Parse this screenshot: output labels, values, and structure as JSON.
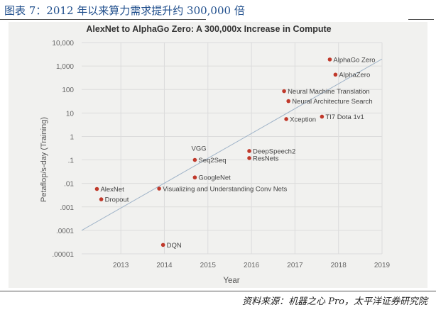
{
  "caption": "图表 7：2012 年以来算力需求提升约 300,000 倍",
  "source": "资料来源：机器之心 Pro，太平洋证券研究院",
  "chart_data": {
    "type": "scatter",
    "title": "AlexNet to AlphaGo Zero: A 300,000x Increase in Compute",
    "xlabel": "Year",
    "ylabel": "Petaflop/s-day (Training)",
    "y_scale": "log",
    "xlim": [
      2012.1,
      2019.0
    ],
    "ylim": [
      1e-05,
      10000
    ],
    "x_ticks": [
      2013,
      2014,
      2015,
      2016,
      2017,
      2018,
      2019
    ],
    "x_tick_labels": [
      "2013",
      "2014",
      "2015",
      "2016",
      "2017",
      "2018",
      "2019"
    ],
    "y_ticks": [
      1e-05,
      0.0001,
      0.001,
      0.01,
      0.1,
      1,
      10,
      100,
      1000,
      10000
    ],
    "y_tick_labels": [
      ".00001",
      ".0001",
      ".001",
      ".01",
      ".1",
      "1",
      "10",
      "100",
      "1,000",
      "10,000"
    ],
    "grid": true,
    "point_color": "#c0392b",
    "trend_color": "#9fb3c8",
    "trend_line": [
      {
        "x": 2012.1,
        "y": 0.0001
      },
      {
        "x": 2019.0,
        "y": 2000
      }
    ],
    "points": [
      {
        "label": "AlexNet",
        "x": 2012.45,
        "y": 0.0058
      },
      {
        "label": "Dropout",
        "x": 2012.55,
        "y": 0.0021
      },
      {
        "label": "Visualizing and Understanding Conv Nets",
        "x": 2013.88,
        "y": 0.006
      },
      {
        "label": "DQN",
        "x": 2013.97,
        "y": 2.4e-05
      },
      {
        "label": "Seq2Seq",
        "x": 2014.7,
        "y": 0.1
      },
      {
        "label": "GoogleNet",
        "x": 2014.7,
        "y": 0.018
      },
      {
        "label": "DeepSpeech2",
        "x": 2015.95,
        "y": 0.24
      },
      {
        "label": "ResNets",
        "x": 2015.95,
        "y": 0.12
      },
      {
        "label": "Neural Machine Translation",
        "x": 2016.75,
        "y": 85
      },
      {
        "label": "Neural Architecture Search",
        "x": 2016.85,
        "y": 32
      },
      {
        "label": "Xception",
        "x": 2016.8,
        "y": 5.5
      },
      {
        "label": "TI7 Dota 1v1",
        "x": 2017.62,
        "y": 7
      },
      {
        "label": "AlphaGo Zero",
        "x": 2017.8,
        "y": 1900
      },
      {
        "label": "AlphaZero",
        "x": 2017.93,
        "y": 430
      }
    ],
    "annotations": [
      {
        "text": "VGG",
        "x": 2014.62,
        "y": 0.25
      }
    ]
  }
}
